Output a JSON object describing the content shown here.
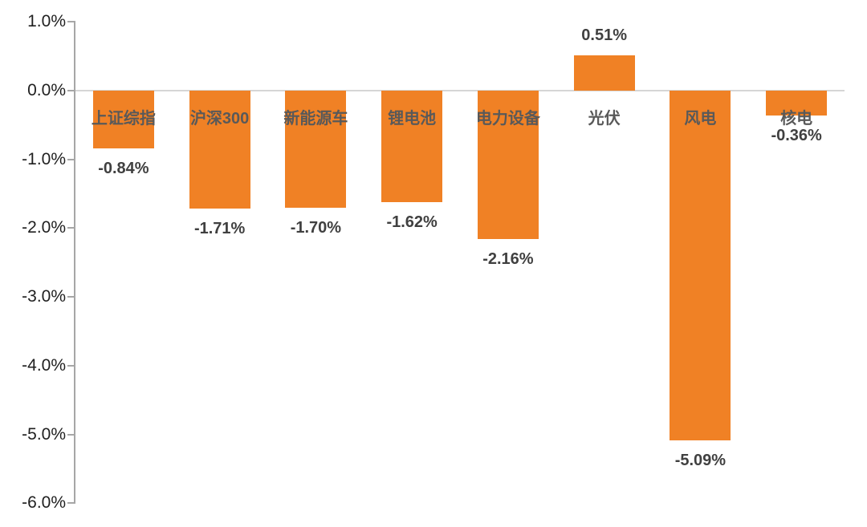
{
  "chart_data": {
    "type": "bar",
    "title": "",
    "xlabel": "",
    "ylabel": "",
    "categories": [
      "上证综指",
      "沪深300",
      "新能源车",
      "锂电池",
      "电力设备",
      "光伏",
      "风电",
      "核电"
    ],
    "values": [
      -0.84,
      -1.71,
      -1.7,
      -1.62,
      -2.16,
      0.51,
      -5.09,
      -0.36
    ],
    "value_labels": [
      "-0.84%",
      "-1.71%",
      "-1.70%",
      "-1.62%",
      "-2.16%",
      "0.51%",
      "-5.09%",
      "-0.36%"
    ],
    "ylim": [
      -6.0,
      1.0
    ],
    "yticks": [
      {
        "value": 1.0,
        "label": "1.0%"
      },
      {
        "value": 0.0,
        "label": "0.0%"
      },
      {
        "value": -1.0,
        "label": "-1.0%"
      },
      {
        "value": -2.0,
        "label": "-2.0%"
      },
      {
        "value": -3.0,
        "label": "-3.0%"
      },
      {
        "value": -4.0,
        "label": "-4.0%"
      },
      {
        "value": -5.0,
        "label": "-5.0%"
      },
      {
        "value": -6.0,
        "label": "-6.0%"
      }
    ],
    "grid": "zero-line-only",
    "legend": "none",
    "colors": {
      "bar": "#F08125",
      "axis_line": "#A6A6A6",
      "zero_line": "#D6D6D6",
      "tick_text": "#1f1f1f",
      "category_text": "#595959",
      "value_text": "#404040",
      "background": "#ffffff"
    }
  }
}
